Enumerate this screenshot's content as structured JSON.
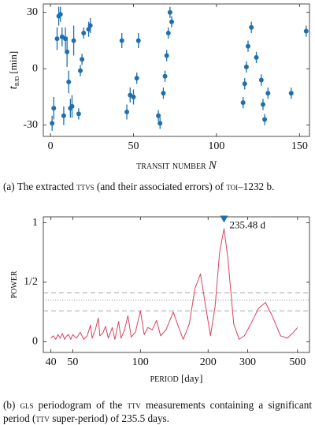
{
  "chart_data": [
    {
      "type": "scatter",
      "xlabel": [
        "transit number",
        "N"
      ],
      "ylabel": [
        "t",
        "bjd",
        "[min]"
      ],
      "xlim": [
        -4.3,
        156
      ],
      "ylim": [
        -36,
        34.5
      ],
      "xticks": [
        0,
        50,
        100,
        150
      ],
      "yticks": [
        -30,
        0,
        30
      ],
      "x": [
        1,
        2,
        4,
        5,
        6,
        7,
        8,
        9,
        10,
        11,
        12,
        13,
        14,
        17,
        18,
        19,
        20,
        23,
        24,
        43,
        46,
        48,
        50,
        52,
        53,
        65,
        66,
        68,
        69,
        70,
        71,
        72,
        73,
        116,
        117,
        118,
        119,
        121,
        124,
        127,
        128,
        129,
        131,
        145,
        154
      ],
      "series": [
        {
          "color": "#1f6fad",
          "values": [
            -29,
            -21,
            16,
            28,
            29,
            17,
            -25,
            16,
            9,
            -7,
            -21,
            -20,
            15,
            -24,
            -1,
            5,
            19,
            21,
            23,
            15,
            -23,
            -14,
            -15,
            -5,
            15,
            -25,
            -29,
            -13,
            -4,
            7,
            19,
            30,
            25,
            -18,
            -8,
            1,
            12,
            22,
            6,
            -6,
            -19,
            -27,
            -13,
            -13,
            20
          ],
          "errors": [
            4,
            6,
            6,
            5,
            4,
            5,
            5,
            6,
            8,
            6,
            5,
            6,
            8,
            3,
            3,
            3,
            3,
            4,
            4,
            4,
            4,
            4,
            4,
            3,
            4,
            3,
            3,
            3,
            3,
            3,
            3,
            3,
            3,
            3,
            3,
            3,
            3,
            3,
            3,
            3,
            3,
            3,
            3,
            3,
            3
          ]
        }
      ]
    },
    {
      "type": "line",
      "xlog": true,
      "xlabel": [
        "period",
        "[day]"
      ],
      "ylabel": "power",
      "xlim": [
        37,
        565
      ],
      "ylim": [
        -0.09,
        1.05
      ],
      "xticks": [
        40,
        50,
        100,
        200,
        300,
        500
      ],
      "yticks": [
        0,
        {
          "value": 0.5,
          "label": "1/2"
        },
        1
      ],
      "x": [
        40,
        41,
        42,
        43,
        44,
        45,
        46,
        47,
        48,
        49,
        50,
        52,
        54,
        56,
        58,
        60,
        61,
        63,
        65,
        66,
        68,
        70,
        72,
        75,
        77,
        80,
        82,
        85,
        88,
        91,
        95,
        100,
        104,
        108,
        113,
        118,
        123,
        130,
        140,
        148,
        155,
        165,
        175,
        185,
        195,
        205,
        215,
        225,
        235.48,
        245,
        260,
        275,
        290,
        310,
        335,
        360,
        385,
        420,
        450,
        480,
        500
      ],
      "series": [
        {
          "color": "#d8435e",
          "values": [
            0.03,
            0.05,
            0.02,
            0.06,
            0.03,
            0.07,
            0.02,
            0.05,
            0.06,
            0.02,
            0.06,
            0.03,
            0.08,
            0.02,
            0.05,
            0.14,
            0.03,
            0.1,
            0.2,
            0.05,
            0.07,
            0.13,
            0.03,
            0.12,
            0.02,
            0.17,
            0.03,
            0.1,
            0.22,
            0.04,
            0.08,
            0.26,
            0.06,
            0.12,
            0.1,
            0.18,
            0.05,
            0.1,
            0.25,
            0.12,
            0.02,
            0.15,
            0.45,
            0.57,
            0.3,
            0.05,
            0.3,
            0.75,
            0.95,
            0.7,
            0.15,
            0.02,
            0.05,
            0.15,
            0.28,
            0.33,
            0.22,
            0.05,
            0.03,
            0.08,
            0.12
          ]
        }
      ],
      "hlines": [
        {
          "y": 0.41,
          "style": "dashed"
        },
        {
          "y": 0.35,
          "style": "dotted"
        },
        {
          "y": 0.26,
          "style": "dashed"
        }
      ],
      "annotations": [
        {
          "x": 235.48,
          "y": 1.0,
          "text": "235.48 d",
          "color": "#1f6fad"
        }
      ]
    }
  ],
  "captions": [
    [
      "(a) The extracted ",
      "ttvs",
      " (and their associated errors) of ",
      "toi",
      "–1232 b."
    ],
    [
      "(b) ",
      "gls",
      " periodogram of the ",
      "ttv",
      " measurements containing a significant period (",
      "ttv",
      " super-period) of 235.5 days."
    ]
  ]
}
